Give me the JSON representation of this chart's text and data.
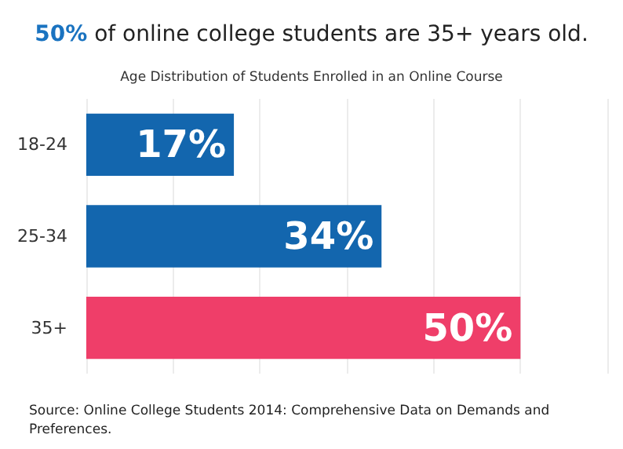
{
  "chart_data": {
    "type": "bar",
    "orientation": "horizontal",
    "title": "50% of online college students are 35+ years old.",
    "subtitle": "Age Distribution of Students Enrolled in an Online Course",
    "categories": [
      "18-24",
      "25-34",
      "35+"
    ],
    "values": [
      17,
      34,
      50
    ],
    "colors": [
      "#1366ae",
      "#1366ae",
      "#ef3e69"
    ],
    "value_labels": [
      "17%",
      "34%",
      "50%"
    ],
    "xlim": [
      0,
      60
    ],
    "xticks": [
      {
        "value": 0,
        "label": null
      },
      {
        "value": 10,
        "label": null
      },
      {
        "value": 20,
        "label": null
      },
      {
        "value": 30,
        "label": null
      },
      {
        "value": 40,
        "label": null
      },
      {
        "value": 50,
        "label": null
      },
      {
        "value": 60,
        "label": null
      }
    ],
    "grid": "x",
    "tick_labels": "y",
    "annotations": [
      "Source: Online College Students 2014: Comprehensive Data on Demands and Preferences."
    ]
  }
}
